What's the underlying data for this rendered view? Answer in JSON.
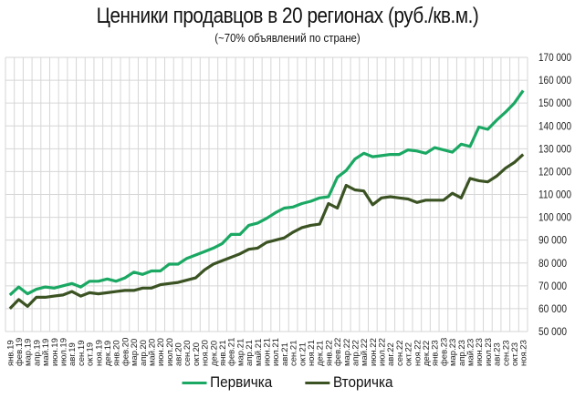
{
  "header": {
    "title": "Ценники продавцов в 20 регионах (руб./кв.м.)",
    "subtitle": "(~70% объявлений по стране)"
  },
  "legend": [
    {
      "label": "Первичка",
      "color": "#1aa863"
    },
    {
      "label": "Вторичка",
      "color": "#3b5323"
    }
  ],
  "chart_data": {
    "type": "line",
    "title": "Ценники продавцов в 20 регионах (руб./кв.м.)",
    "subtitle": "(~70% объявлений по стране)",
    "xlabel": "",
    "ylabel": "",
    "ylim": [
      50000,
      170000
    ],
    "yticks": [
      50000,
      60000,
      70000,
      80000,
      90000,
      100000,
      110000,
      120000,
      130000,
      140000,
      150000,
      160000,
      170000
    ],
    "ytick_labels": [
      "50 000",
      "60 000",
      "70 000",
      "80 000",
      "90 000",
      "100 000",
      "110 000",
      "120 000",
      "130 000",
      "140 000",
      "150 000",
      "160 000",
      "170 000"
    ],
    "y_axis_position": "right",
    "grid": true,
    "legend_position": "bottom",
    "categories": [
      "янв.19",
      "фев.19",
      "мар.19",
      "апр.19",
      "май.19",
      "июн.19",
      "июл.19",
      "авг.19",
      "сен.19",
      "окт.19",
      "ноя.19",
      "дек.19",
      "янв.20",
      "фев.20",
      "мар.20",
      "апр.20",
      "май.20",
      "июн.20",
      "июл.20",
      "авг.20",
      "сен.20",
      "окт.20",
      "ноя.20",
      "дек.20",
      "янв.21",
      "фев.21",
      "мар.21",
      "апр.21",
      "май.21",
      "июн.21",
      "июл.21",
      "авг.21",
      "сен.21",
      "окт.21",
      "ноя.21",
      "дек.21",
      "янв.22",
      "фев.22",
      "мар.22",
      "апр.22",
      "май.22",
      "июн.22",
      "июл.22",
      "авг.22",
      "сен.22",
      "окт.22",
      "ноя.22",
      "дек.22",
      "янв.23",
      "фев.23",
      "мар.23",
      "апр.23",
      "май.23",
      "июн.23",
      "июл.23",
      "авг.23",
      "сен.23",
      "окт.23",
      "ноя.23"
    ],
    "series": [
      {
        "name": "Первичка",
        "color": "#1aa863",
        "values": [
          66000,
          69500,
          66500,
          68500,
          69500,
          69000,
          70000,
          71000,
          69500,
          72000,
          72000,
          73000,
          72000,
          73500,
          76000,
          75000,
          76500,
          76500,
          79500,
          79500,
          82000,
          83500,
          85000,
          86500,
          88500,
          92500,
          92500,
          96500,
          97500,
          99500,
          102000,
          104000,
          104500,
          106000,
          107000,
          108500,
          109000,
          117500,
          120500,
          125500,
          128000,
          126500,
          127000,
          127500,
          127500,
          129500,
          129000,
          128000,
          130500,
          129500,
          128500,
          132000,
          131000,
          139500,
          138500,
          142500,
          146000,
          150000,
          155500
        ]
      },
      {
        "name": "Вторичка",
        "color": "#3b5323",
        "values": [
          60000,
          64000,
          61000,
          65000,
          65000,
          65500,
          66000,
          67500,
          65500,
          67000,
          66500,
          67000,
          67500,
          68000,
          68000,
          69000,
          69000,
          70500,
          71000,
          71500,
          72500,
          73500,
          77000,
          79500,
          81000,
          82500,
          84000,
          86000,
          86500,
          89000,
          90000,
          91000,
          93500,
          95500,
          96500,
          97000,
          106000,
          104000,
          114000,
          112000,
          111500,
          105500,
          108500,
          109000,
          108500,
          108000,
          106500,
          107500,
          107500,
          107500,
          110500,
          108500,
          117000,
          116000,
          115500,
          118000,
          121500,
          124000,
          127500
        ]
      }
    ]
  }
}
